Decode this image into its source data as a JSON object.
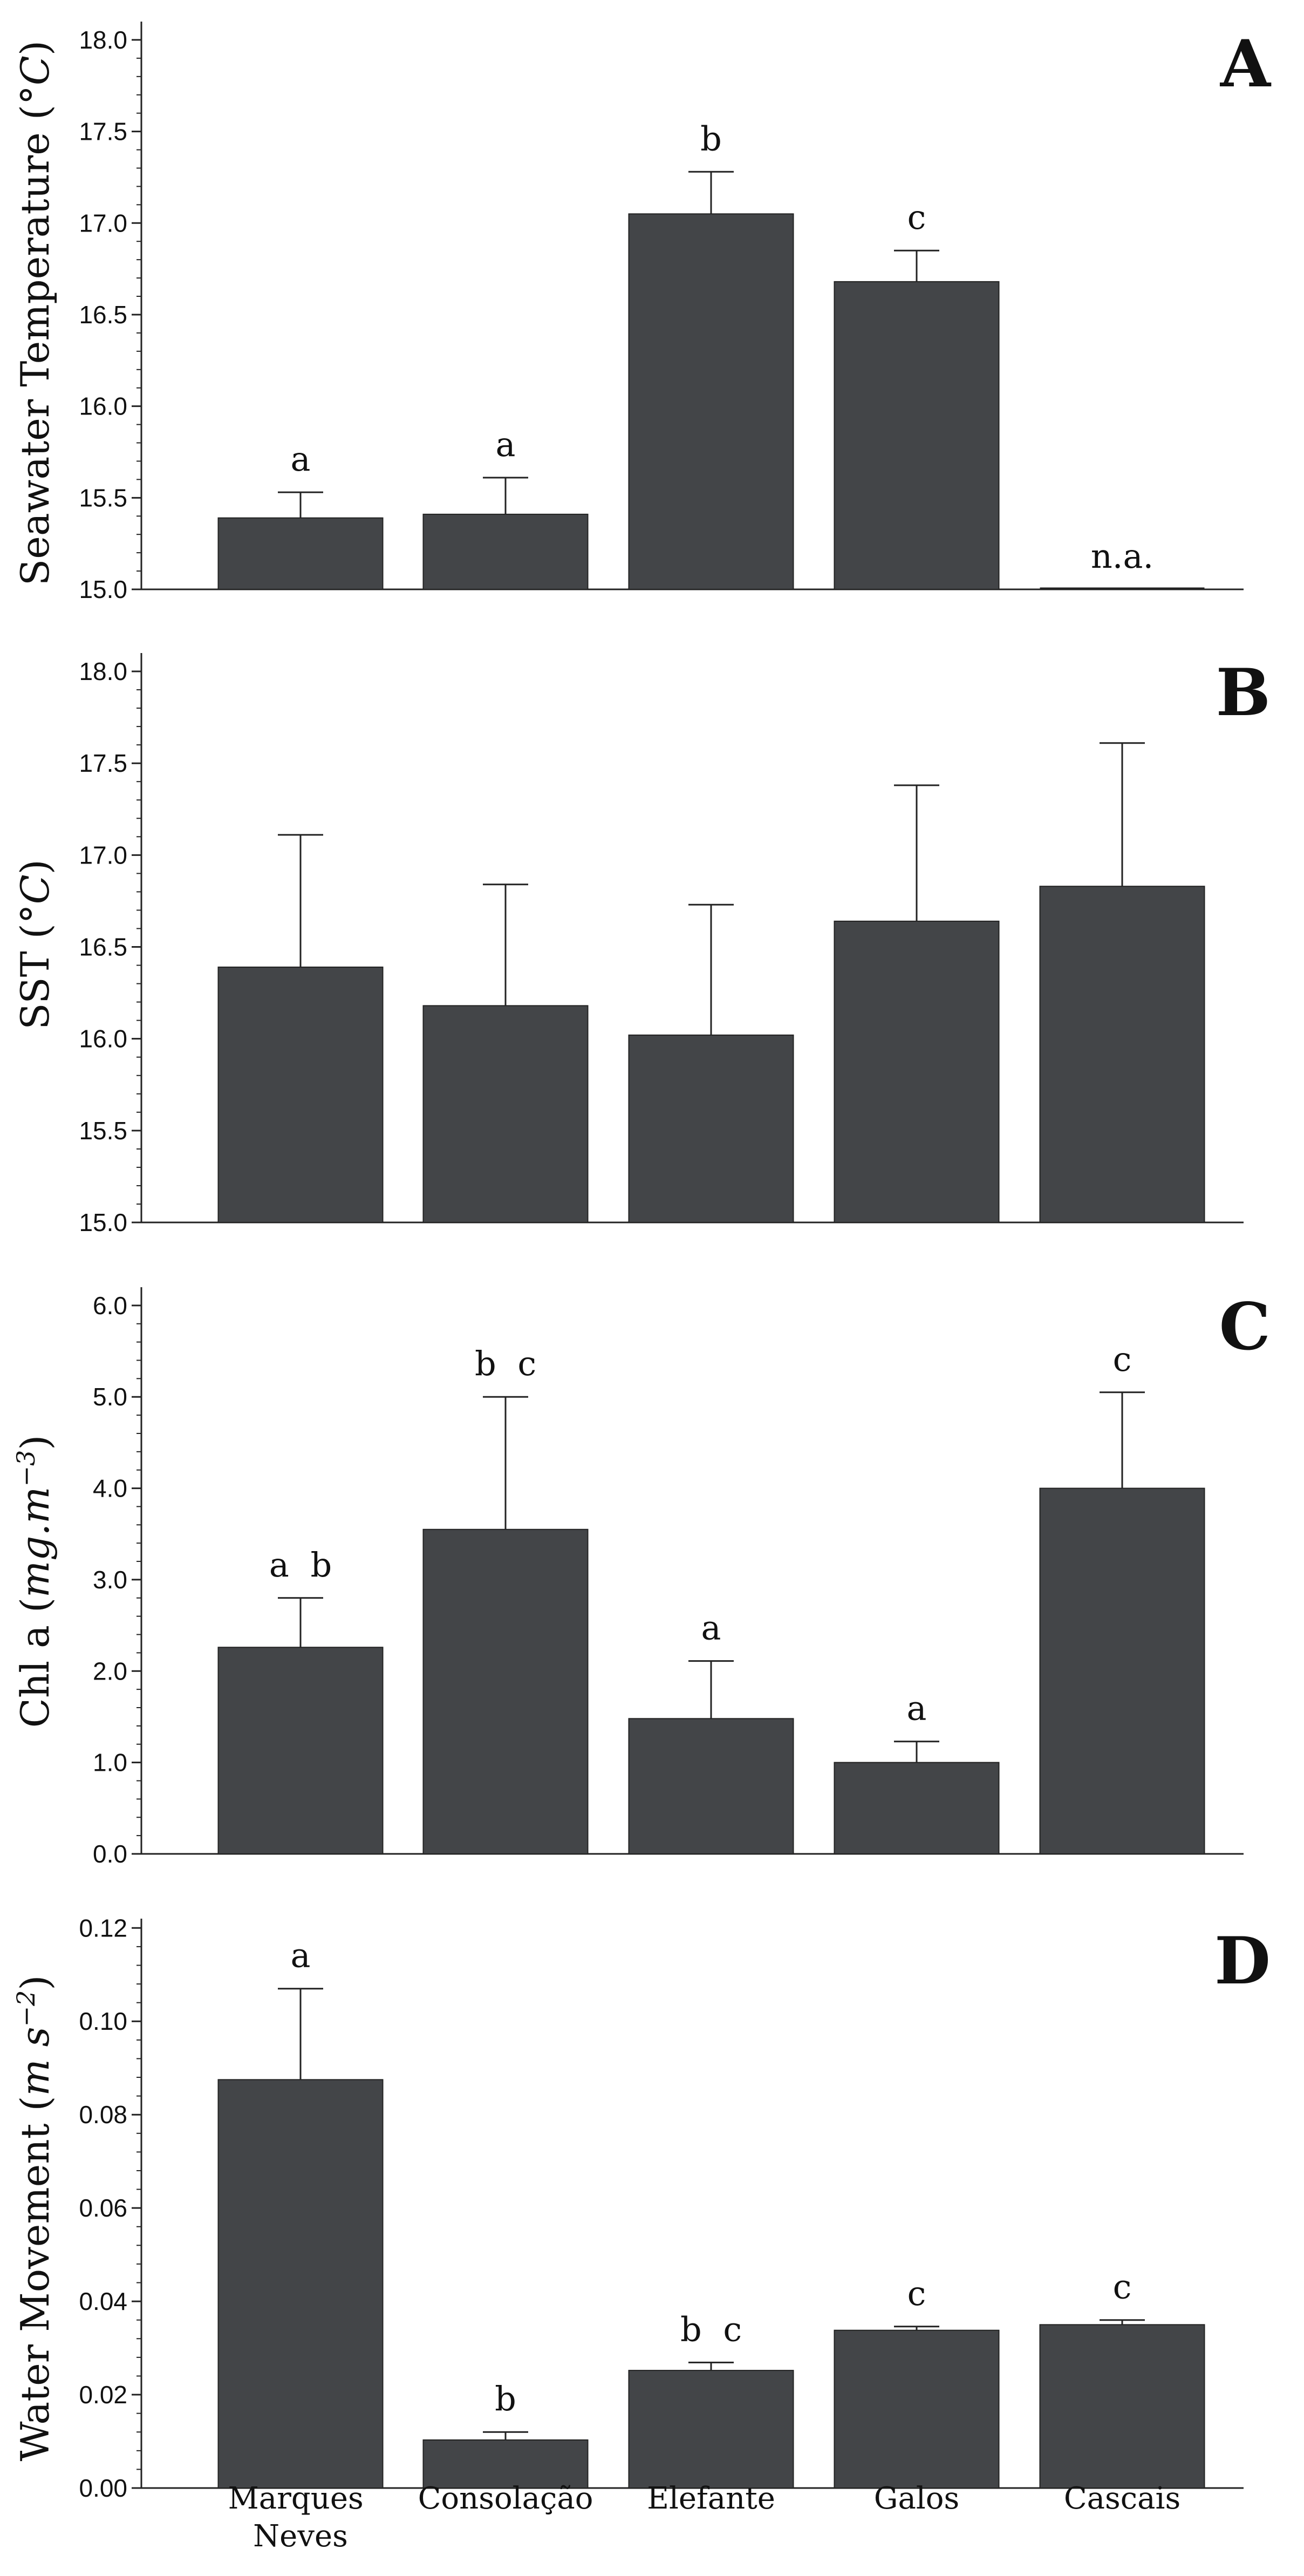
{
  "categories": [
    [
      "Marques",
      "Neves"
    ],
    [
      "Consolação"
    ],
    [
      "Elefante"
    ],
    [
      "Galos"
    ],
    [
      "Cascais"
    ]
  ],
  "colors": {
    "bar": "#434548",
    "bar_stroke": "#222222",
    "axis": "#222222",
    "text": "#111111"
  },
  "chart_data": [
    {
      "type": "bar",
      "panel": "A",
      "ylabel": [
        "Seawater Temperature (",
        "°C",
        ")"
      ],
      "ylim": [
        15.0,
        18.1
      ],
      "yticks": [
        15.0,
        15.5,
        16.0,
        16.5,
        17.0,
        17.5,
        18.0
      ],
      "ytick_labels": [
        "15.0",
        "15.5",
        "16.0",
        "16.5",
        "17.0",
        "17.5",
        "18.0"
      ],
      "values": [
        15.39,
        15.41,
        17.05,
        16.68,
        null
      ],
      "errors": [
        0.14,
        0.2,
        0.23,
        0.17,
        null
      ],
      "labels": [
        "a",
        "a",
        "b",
        "c",
        "n.a."
      ]
    },
    {
      "type": "bar",
      "panel": "B",
      "ylabel": [
        "SST (",
        "°C",
        ")"
      ],
      "ylim": [
        15.0,
        18.1
      ],
      "yticks": [
        15.0,
        15.5,
        16.0,
        16.5,
        17.0,
        17.5,
        18.0
      ],
      "ytick_labels": [
        "15.0",
        "15.5",
        "16.0",
        "16.5",
        "17.0",
        "17.5",
        "18.0"
      ],
      "values": [
        16.39,
        16.18,
        16.02,
        16.64,
        16.83
      ],
      "errors": [
        0.72,
        0.66,
        0.71,
        0.74,
        0.78
      ],
      "labels": [
        "",
        "",
        "",
        "",
        ""
      ]
    },
    {
      "type": "bar",
      "panel": "C",
      "ylabel": [
        "Chl a (",
        "mg.m",
        "−3",
        ")"
      ],
      "ylim": [
        0.0,
        6.2
      ],
      "yticks": [
        0.0,
        1.0,
        2.0,
        3.0,
        4.0,
        5.0,
        6.0
      ],
      "ytick_labels": [
        "0.0",
        "1.0",
        "2.0",
        "3.0",
        "4.0",
        "5.0",
        "6.0"
      ],
      "values": [
        2.26,
        3.55,
        1.48,
        1.0,
        4.0
      ],
      "errors": [
        0.54,
        1.45,
        0.63,
        0.23,
        1.05
      ],
      "labels": [
        "a b",
        "b c",
        "a",
        "a",
        "c"
      ]
    },
    {
      "type": "bar",
      "panel": "D",
      "ylabel": [
        "Water Movement (",
        "m s",
        "−2",
        ")"
      ],
      "ylim": [
        0.0,
        0.122
      ],
      "yticks": [
        0.0,
        0.02,
        0.04,
        0.06,
        0.08,
        0.1,
        0.12
      ],
      "ytick_labels": [
        "0.00",
        "0.02",
        "0.04",
        "0.06",
        "0.08",
        "0.10",
        "0.12"
      ],
      "values": [
        0.0875,
        0.0103,
        0.0252,
        0.0338,
        0.035
      ],
      "errors": [
        0.0195,
        0.0017,
        0.0017,
        0.0008,
        0.001
      ],
      "labels": [
        "a",
        "b",
        "b c",
        "c",
        "c"
      ]
    }
  ]
}
